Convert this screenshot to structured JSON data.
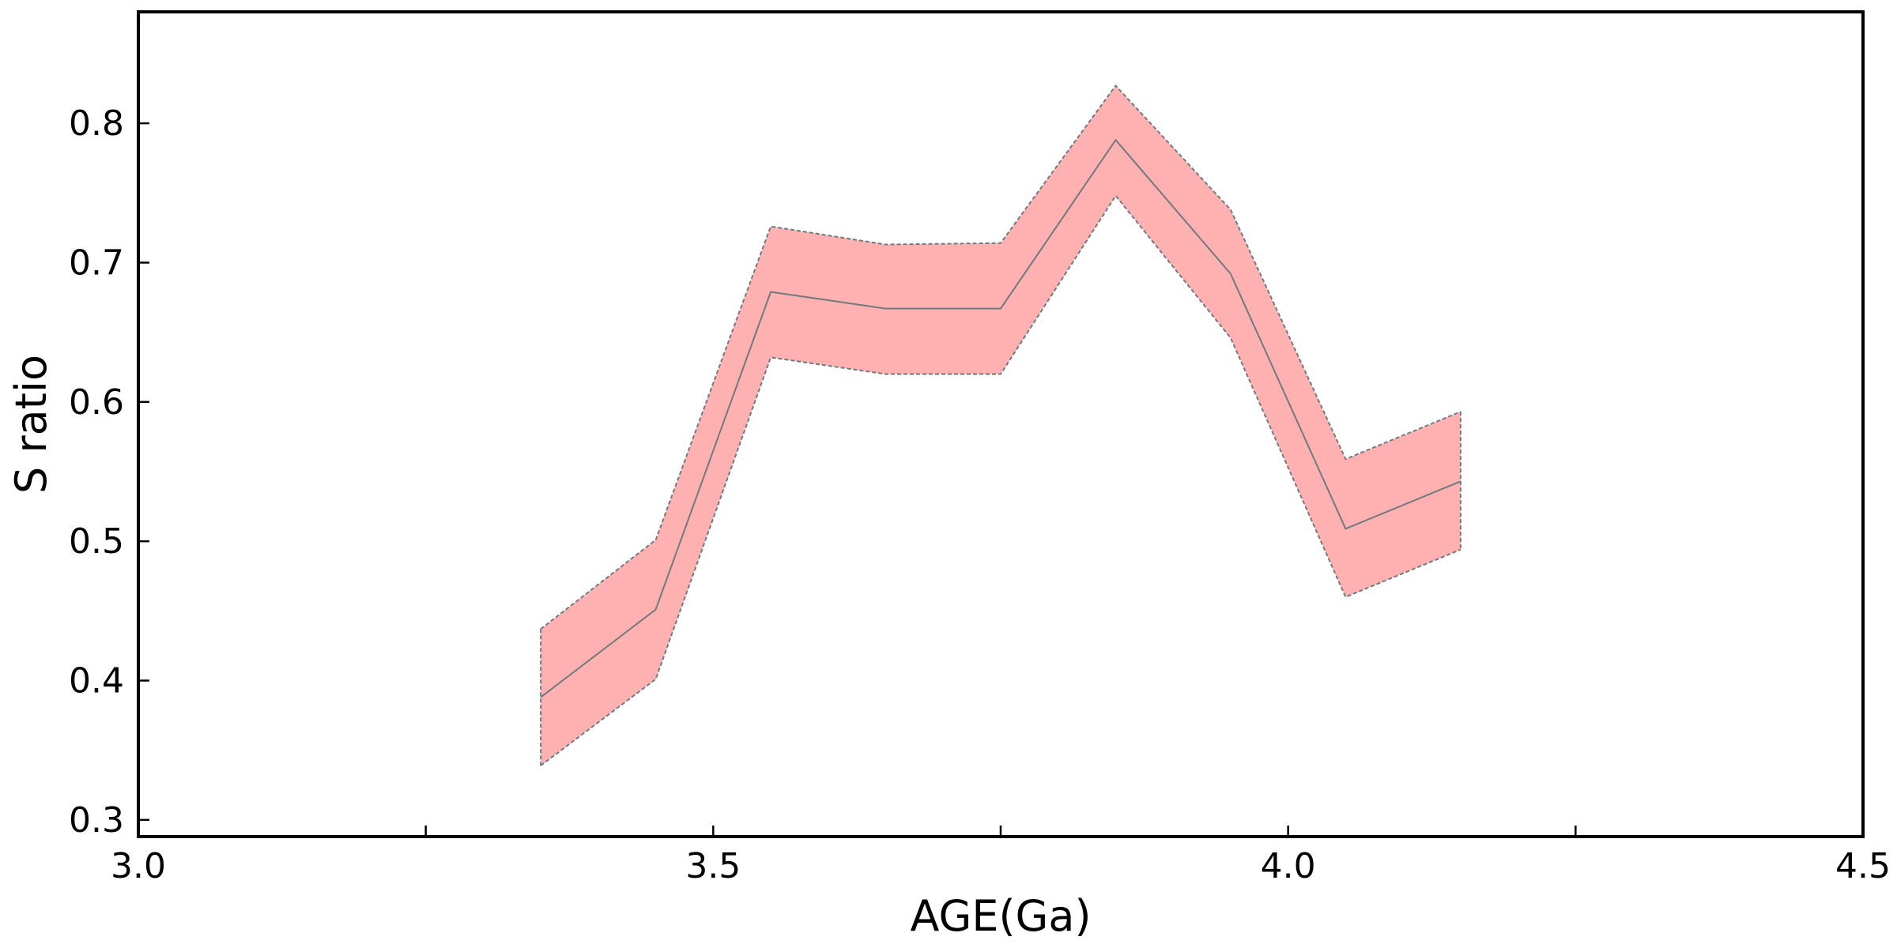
{
  "chart_data": {
    "type": "area",
    "xlabel": "AGE(Ga)",
    "ylabel": "S ratio",
    "xlim": [
      3.0,
      4.5
    ],
    "ylim": [
      0.288,
      0.88
    ],
    "x_ticks": [
      3.0,
      3.5,
      4.0,
      4.5
    ],
    "x_tick_labels": [
      "3.0",
      "3.5",
      "4.0",
      "4.5"
    ],
    "x_minor_ticks": [
      3.25,
      3.75,
      4.25
    ],
    "y_ticks": [
      0.3,
      0.4,
      0.5,
      0.6,
      0.7,
      0.8
    ],
    "y_tick_labels": [
      "0.3",
      "0.4",
      "0.5",
      "0.6",
      "0.7",
      "0.8"
    ],
    "grid": false,
    "legend": "none",
    "x": [
      3.35,
      3.45,
      3.55,
      3.65,
      3.75,
      3.85,
      3.95,
      4.05,
      4.15
    ],
    "series": [
      {
        "role": "mean",
        "values": [
          0.388,
          0.451,
          0.679,
          0.667,
          0.667,
          0.788,
          0.692,
          0.509,
          0.543
        ]
      },
      {
        "role": "upper",
        "values": [
          0.437,
          0.501,
          0.726,
          0.713,
          0.714,
          0.827,
          0.738,
          0.559,
          0.593
        ]
      },
      {
        "role": "lower",
        "values": [
          0.339,
          0.401,
          0.632,
          0.62,
          0.62,
          0.748,
          0.646,
          0.46,
          0.494
        ]
      }
    ],
    "colors": {
      "band": "#ffb1b1",
      "line": "#6e7a7e",
      "edge": "#6e7a7e"
    }
  }
}
